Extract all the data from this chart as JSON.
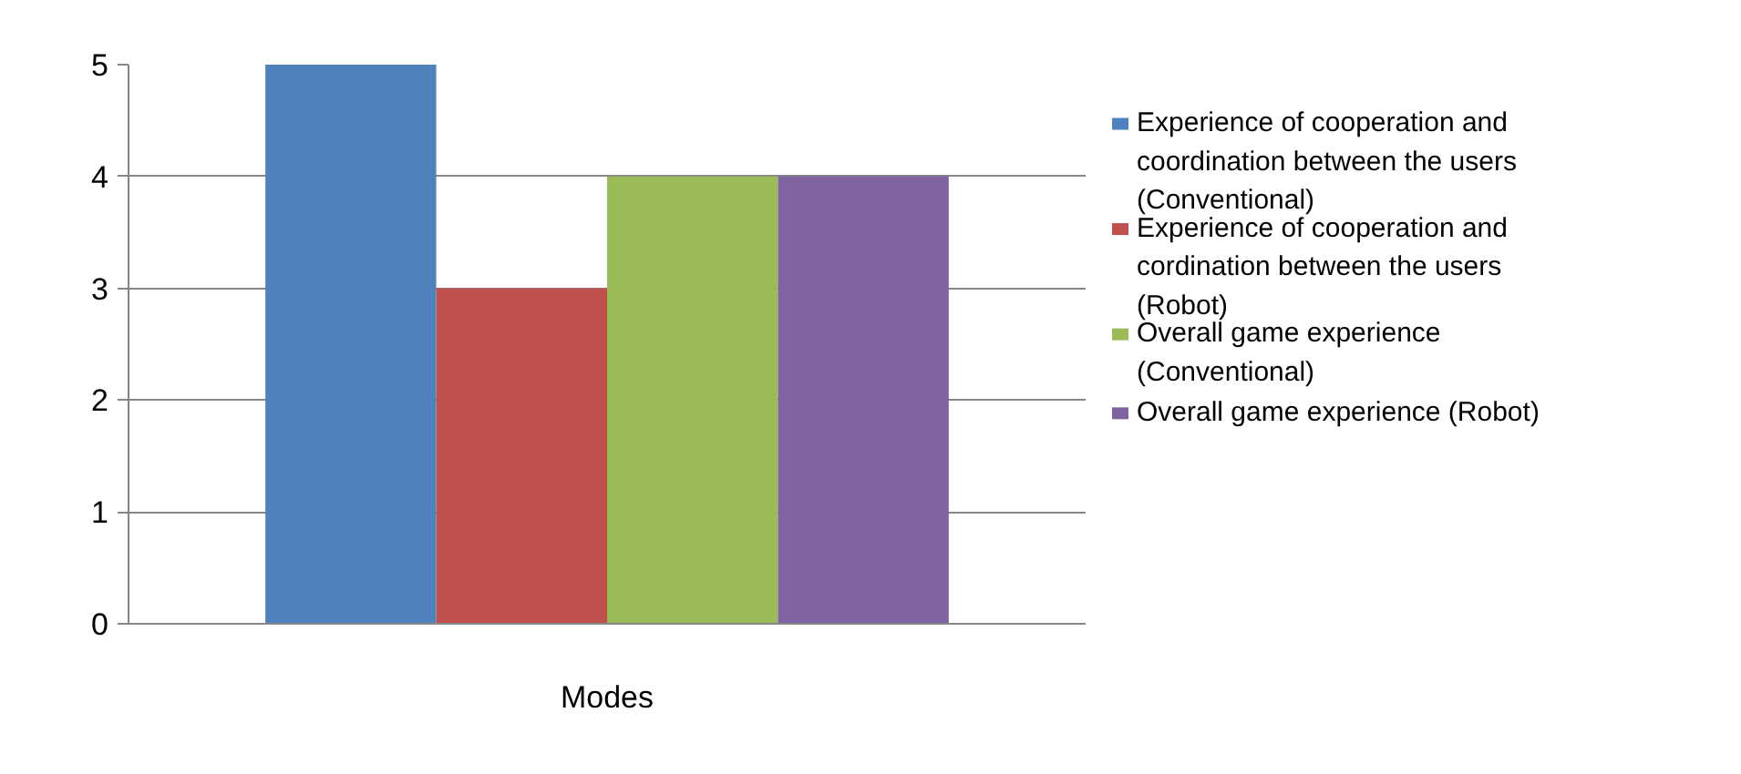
{
  "chart_data": {
    "type": "bar",
    "categories": [
      "Modes"
    ],
    "ylim": [
      0,
      5
    ],
    "yticks": [
      0,
      1,
      2,
      3,
      4,
      5
    ],
    "grid": "y",
    "legend": "right",
    "series": [
      {
        "name": "Experience of cooperation and coordination between the users (Conventional)",
        "color": "#4f81bd",
        "values": [
          5
        ]
      },
      {
        "name": "Experience of cooperation and cordination between the users (Robot)",
        "color": "#c0504d",
        "values": [
          3
        ]
      },
      {
        "name": "Overall game experience (Conventional)",
        "color": "#9bbb59",
        "values": [
          4
        ]
      },
      {
        "name": "Overall game experience (Robot)",
        "color": "#8064a2",
        "values": [
          4
        ]
      }
    ]
  }
}
